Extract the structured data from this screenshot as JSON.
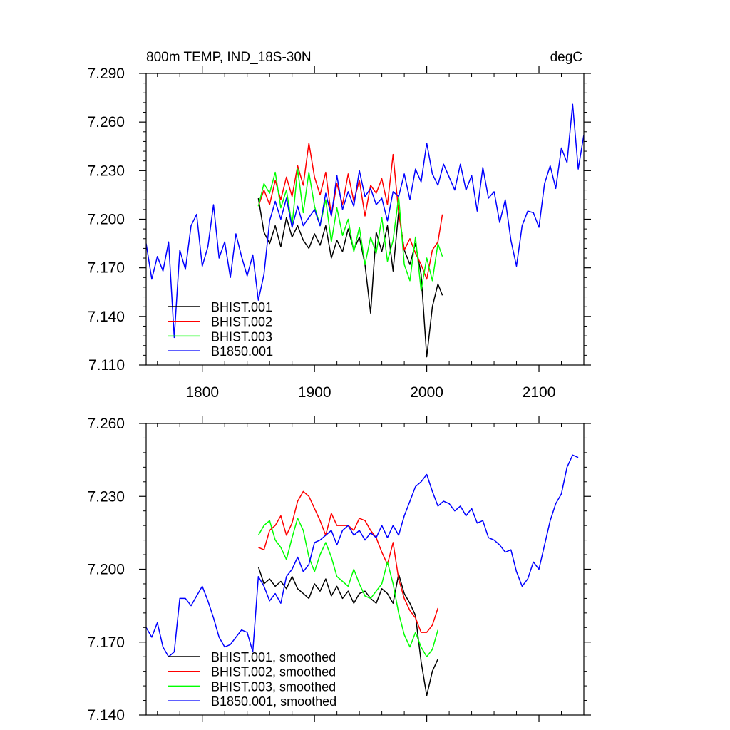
{
  "colors": {
    "BHIST.001": "#000000",
    "BHIST.002": "#ff0000",
    "BHIST.003": "#00ff00",
    "B1850.001": "#0000ff"
  },
  "chart_data": [
    {
      "type": "line",
      "title": "800m TEMP, IND_18S-30N",
      "units_label": "degC",
      "xlabel": "",
      "ylabel": "",
      "xlim": [
        1750,
        2140
      ],
      "ylim": [
        7.11,
        7.29
      ],
      "xticks": [
        1800,
        1900,
        2000,
        2100
      ],
      "xtick_labels": [
        "1800",
        "1900",
        "2000",
        "2100"
      ],
      "yticks": [
        7.11,
        7.14,
        7.17,
        7.2,
        7.23,
        7.26,
        7.29
      ],
      "ytick_labels": [
        "7.110",
        "7.140",
        "7.170",
        "7.200",
        "7.230",
        "7.260",
        "7.290"
      ],
      "grid": false,
      "legend_position": "bottom-left",
      "series": [
        {
          "name": "BHIST.001",
          "x": [
            1850,
            1855,
            1860,
            1865,
            1870,
            1875,
            1880,
            1885,
            1890,
            1895,
            1900,
            1905,
            1910,
            1915,
            1920,
            1925,
            1930,
            1935,
            1940,
            1945,
            1950,
            1955,
            1960,
            1965,
            1970,
            1975,
            1980,
            1985,
            1990,
            1995,
            2000,
            2005,
            2010,
            2014
          ],
          "values": [
            7.213,
            7.192,
            7.185,
            7.196,
            7.183,
            7.201,
            7.189,
            7.196,
            7.187,
            7.182,
            7.191,
            7.184,
            7.196,
            7.176,
            7.187,
            7.18,
            7.194,
            7.181,
            7.189,
            7.172,
            7.142,
            7.192,
            7.18,
            7.196,
            7.168,
            7.205,
            7.181,
            7.172,
            7.185,
            7.166,
            7.115,
            7.146,
            7.16,
            7.153
          ]
        },
        {
          "name": "BHIST.002",
          "x": [
            1850,
            1855,
            1860,
            1865,
            1870,
            1875,
            1880,
            1885,
            1890,
            1895,
            1900,
            1905,
            1910,
            1915,
            1920,
            1925,
            1930,
            1935,
            1940,
            1945,
            1950,
            1955,
            1960,
            1965,
            1970,
            1975,
            1980,
            1985,
            1990,
            1995,
            2000,
            2005,
            2010,
            2014
          ],
          "values": [
            7.208,
            7.218,
            7.209,
            7.224,
            7.212,
            7.226,
            7.214,
            7.233,
            7.221,
            7.247,
            7.226,
            7.215,
            7.229,
            7.202,
            7.222,
            7.209,
            7.228,
            7.211,
            7.224,
            7.202,
            7.221,
            7.216,
            7.225,
            7.209,
            7.24,
            7.204,
            7.181,
            7.188,
            7.179,
            7.172,
            7.163,
            7.181,
            7.186,
            7.203
          ]
        },
        {
          "name": "BHIST.003",
          "x": [
            1850,
            1855,
            1860,
            1865,
            1870,
            1875,
            1880,
            1885,
            1890,
            1895,
            1900,
            1905,
            1910,
            1915,
            1920,
            1925,
            1930,
            1935,
            1940,
            1945,
            1950,
            1955,
            1960,
            1965,
            1970,
            1975,
            1980,
            1985,
            1990,
            1995,
            2000,
            2005,
            2010,
            2014
          ],
          "values": [
            7.208,
            7.222,
            7.216,
            7.229,
            7.207,
            7.218,
            7.196,
            7.231,
            7.204,
            7.229,
            7.208,
            7.196,
            7.212,
            7.186,
            7.207,
            7.19,
            7.2,
            7.18,
            7.195,
            7.172,
            7.189,
            7.179,
            7.201,
            7.174,
            7.187,
            7.214,
            7.172,
            7.162,
            7.189,
            7.156,
            7.176,
            7.162,
            7.185,
            7.177
          ]
        },
        {
          "name": "B1850.001",
          "x": [
            1750,
            1755,
            1760,
            1765,
            1770,
            1775,
            1780,
            1785,
            1790,
            1795,
            1800,
            1805,
            1810,
            1815,
            1820,
            1825,
            1830,
            1835,
            1840,
            1845,
            1850,
            1855,
            1860,
            1865,
            1870,
            1875,
            1880,
            1885,
            1890,
            1895,
            1900,
            1905,
            1910,
            1915,
            1920,
            1925,
            1930,
            1935,
            1940,
            1945,
            1950,
            1955,
            1960,
            1965,
            1970,
            1975,
            1980,
            1985,
            1990,
            1995,
            2000,
            2005,
            2010,
            2015,
            2020,
            2025,
            2030,
            2035,
            2040,
            2045,
            2050,
            2055,
            2060,
            2065,
            2070,
            2075,
            2080,
            2085,
            2090,
            2095,
            2100,
            2105,
            2110,
            2115,
            2120,
            2125,
            2130,
            2135,
            2140
          ],
          "values": [
            7.185,
            7.163,
            7.177,
            7.168,
            7.186,
            7.127,
            7.181,
            7.169,
            7.196,
            7.203,
            7.171,
            7.183,
            7.209,
            7.176,
            7.186,
            7.164,
            7.191,
            7.177,
            7.165,
            7.178,
            7.15,
            7.166,
            7.199,
            7.211,
            7.2,
            7.213,
            7.195,
            7.208,
            7.196,
            7.201,
            7.206,
            7.196,
            7.216,
            7.202,
            7.227,
            7.206,
            7.217,
            7.208,
            7.23,
            7.214,
            7.219,
            7.209,
            7.213,
            7.199,
            7.217,
            7.214,
            7.228,
            7.212,
            7.231,
            7.223,
            7.247,
            7.228,
            7.221,
            7.234,
            7.226,
            7.218,
            7.234,
            7.218,
            7.227,
            7.205,
            7.232,
            7.213,
            7.217,
            7.198,
            7.212,
            7.187,
            7.171,
            7.196,
            7.205,
            7.204,
            7.195,
            7.222,
            7.233,
            7.219,
            7.244,
            7.235,
            7.271,
            7.231,
            7.252
          ]
        }
      ]
    },
    {
      "type": "line",
      "title": "",
      "xlabel": "",
      "ylabel": "",
      "xlim": [
        1750,
        2140
      ],
      "ylim": [
        7.14,
        7.26
      ],
      "xticks": [
        1800,
        1900,
        2000,
        2100
      ],
      "yticks": [
        7.14,
        7.17,
        7.2,
        7.23,
        7.26
      ],
      "ytick_labels": [
        "7.140",
        "7.170",
        "7.200",
        "7.230",
        "7.260"
      ],
      "grid": false,
      "legend_position": "bottom-left",
      "series": [
        {
          "name": "BHIST.001, smoothed",
          "x": [
            1850,
            1855,
            1860,
            1865,
            1870,
            1875,
            1880,
            1885,
            1890,
            1895,
            1900,
            1905,
            1910,
            1915,
            1920,
            1925,
            1930,
            1935,
            1940,
            1945,
            1950,
            1955,
            1960,
            1965,
            1970,
            1975,
            1980,
            1985,
            1990,
            1995,
            2000,
            2005,
            2010
          ],
          "values": [
            7.201,
            7.194,
            7.196,
            7.193,
            7.195,
            7.192,
            7.197,
            7.192,
            7.19,
            7.188,
            7.194,
            7.191,
            7.196,
            7.189,
            7.193,
            7.188,
            7.191,
            7.186,
            7.19,
            7.191,
            7.188,
            7.186,
            7.192,
            7.19,
            7.186,
            7.198,
            7.19,
            7.186,
            7.181,
            7.162,
            7.148,
            7.158,
            7.163
          ]
        },
        {
          "name": "BHIST.002, smoothed",
          "x": [
            1850,
            1855,
            1860,
            1865,
            1870,
            1875,
            1880,
            1885,
            1890,
            1895,
            1900,
            1905,
            1910,
            1915,
            1920,
            1925,
            1930,
            1935,
            1940,
            1945,
            1950,
            1955,
            1960,
            1965,
            1970,
            1975,
            1980,
            1985,
            1990,
            1995,
            2000,
            2005,
            2010
          ],
          "values": [
            7.209,
            7.208,
            7.216,
            7.218,
            7.222,
            7.214,
            7.219,
            7.228,
            7.232,
            7.23,
            7.225,
            7.22,
            7.214,
            7.223,
            7.218,
            7.218,
            7.218,
            7.216,
            7.221,
            7.22,
            7.216,
            7.213,
            7.207,
            7.202,
            7.211,
            7.196,
            7.188,
            7.183,
            7.18,
            7.174,
            7.174,
            7.177,
            7.184
          ]
        },
        {
          "name": "BHIST.003, smoothed",
          "x": [
            1850,
            1855,
            1860,
            1865,
            1870,
            1875,
            1880,
            1885,
            1890,
            1895,
            1900,
            1905,
            1910,
            1915,
            1920,
            1925,
            1930,
            1935,
            1940,
            1945,
            1950,
            1955,
            1960,
            1965,
            1970,
            1975,
            1980,
            1985,
            1990,
            1995,
            2000,
            2005,
            2010
          ],
          "values": [
            7.214,
            7.218,
            7.22,
            7.212,
            7.209,
            7.204,
            7.213,
            7.221,
            7.216,
            7.205,
            7.199,
            7.206,
            7.211,
            7.205,
            7.197,
            7.195,
            7.193,
            7.2,
            7.194,
            7.189,
            7.188,
            7.191,
            7.194,
            7.203,
            7.194,
            7.182,
            7.173,
            7.168,
            7.174,
            7.168,
            7.164,
            7.167,
            7.175
          ]
        },
        {
          "name": "B1850.001, smoothed",
          "x": [
            1750,
            1755,
            1760,
            1765,
            1770,
            1775,
            1780,
            1785,
            1790,
            1795,
            1800,
            1805,
            1810,
            1815,
            1820,
            1825,
            1830,
            1835,
            1840,
            1845,
            1850,
            1855,
            1860,
            1865,
            1870,
            1875,
            1880,
            1885,
            1890,
            1895,
            1900,
            1905,
            1910,
            1915,
            1920,
            1925,
            1930,
            1935,
            1940,
            1945,
            1950,
            1955,
            1960,
            1965,
            1970,
            1975,
            1980,
            1985,
            1990,
            1995,
            2000,
            2005,
            2010,
            2015,
            2020,
            2025,
            2030,
            2035,
            2040,
            2045,
            2050,
            2055,
            2060,
            2065,
            2070,
            2075,
            2080,
            2085,
            2090,
            2095,
            2100,
            2105,
            2110,
            2115,
            2120,
            2125,
            2130,
            2135
          ],
          "values": [
            7.176,
            7.172,
            7.178,
            7.168,
            7.164,
            7.166,
            7.188,
            7.188,
            7.185,
            7.189,
            7.193,
            7.187,
            7.18,
            7.172,
            7.168,
            7.169,
            7.172,
            7.175,
            7.174,
            7.166,
            7.197,
            7.193,
            7.187,
            7.19,
            7.186,
            7.197,
            7.2,
            7.205,
            7.199,
            7.202,
            7.211,
            7.212,
            7.214,
            7.216,
            7.21,
            7.216,
            7.218,
            7.214,
            7.216,
            7.212,
            7.215,
            7.213,
            7.218,
            7.213,
            7.218,
            7.214,
            7.222,
            7.228,
            7.234,
            7.236,
            7.239,
            7.232,
            7.226,
            7.228,
            7.227,
            7.224,
            7.226,
            7.222,
            7.225,
            7.219,
            7.22,
            7.213,
            7.212,
            7.21,
            7.207,
            7.208,
            7.199,
            7.193,
            7.196,
            7.203,
            7.2,
            7.21,
            7.22,
            7.227,
            7.231,
            7.242,
            7.247,
            7.246
          ]
        }
      ]
    }
  ]
}
